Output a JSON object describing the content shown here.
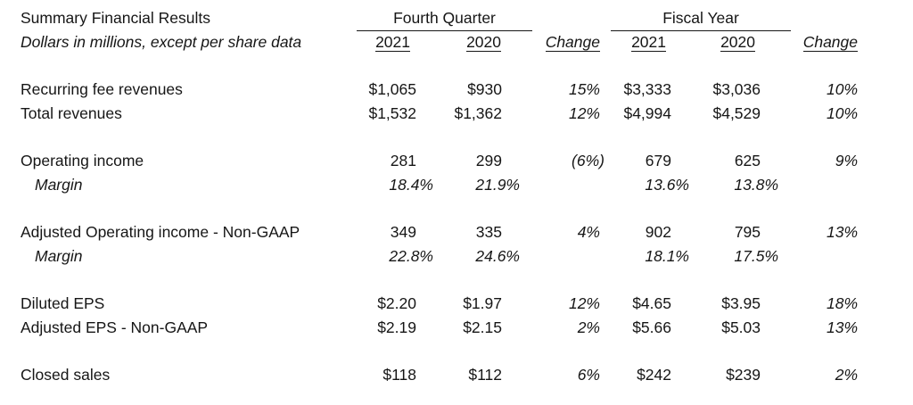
{
  "page": {
    "background": "#ffffff",
    "text_color": "#161616"
  },
  "table": {
    "title": "Summary Financial Results",
    "subtitle": "Dollars in millions, except per share data",
    "groups": {
      "fourth_quarter": "Fourth Quarter",
      "fiscal_year": "Fiscal Year"
    },
    "columns": [
      "2021",
      "2020",
      "Change",
      "2021",
      "2020",
      "Change"
    ],
    "rows": [
      {
        "type": "spacer"
      },
      {
        "type": "data",
        "label": "Recurring fee revenues",
        "values": [
          "$1,065",
          "$930",
          "15%",
          "$3,333",
          "$3,036",
          "10%"
        ]
      },
      {
        "type": "data",
        "label": "Total revenues",
        "values": [
          "$1,532",
          "$1,362",
          "12%",
          "$4,994",
          "$4,529",
          "10%"
        ]
      },
      {
        "type": "spacer"
      },
      {
        "type": "data",
        "label": "Operating income",
        "values": [
          "281",
          "299",
          "(6%)",
          "679",
          "625",
          "9%"
        ]
      },
      {
        "type": "margin",
        "label": "Margin",
        "values": [
          "18.4%",
          "21.9%",
          "",
          "13.6%",
          "13.8%",
          ""
        ]
      },
      {
        "type": "spacer"
      },
      {
        "type": "data",
        "label": "Adjusted Operating income - Non-GAAP",
        "values": [
          "349",
          "335",
          "4%",
          "902",
          "795",
          "13%"
        ]
      },
      {
        "type": "margin",
        "label": "Margin",
        "values": [
          "22.8%",
          "24.6%",
          "",
          "18.1%",
          "17.5%",
          ""
        ]
      },
      {
        "type": "spacer"
      },
      {
        "type": "data",
        "label": "Diluted EPS",
        "values": [
          "$2.20",
          "$1.97",
          "12%",
          "$4.65",
          "$3.95",
          "18%"
        ]
      },
      {
        "type": "data",
        "label": "Adjusted EPS - Non-GAAP",
        "values": [
          "$2.19",
          "$2.15",
          "2%",
          "$5.66",
          "$5.03",
          "13%"
        ]
      },
      {
        "type": "spacer"
      },
      {
        "type": "data",
        "label": "Closed sales",
        "values": [
          "$118",
          "$112",
          "6%",
          "$242",
          "$239",
          "2%"
        ]
      }
    ]
  }
}
